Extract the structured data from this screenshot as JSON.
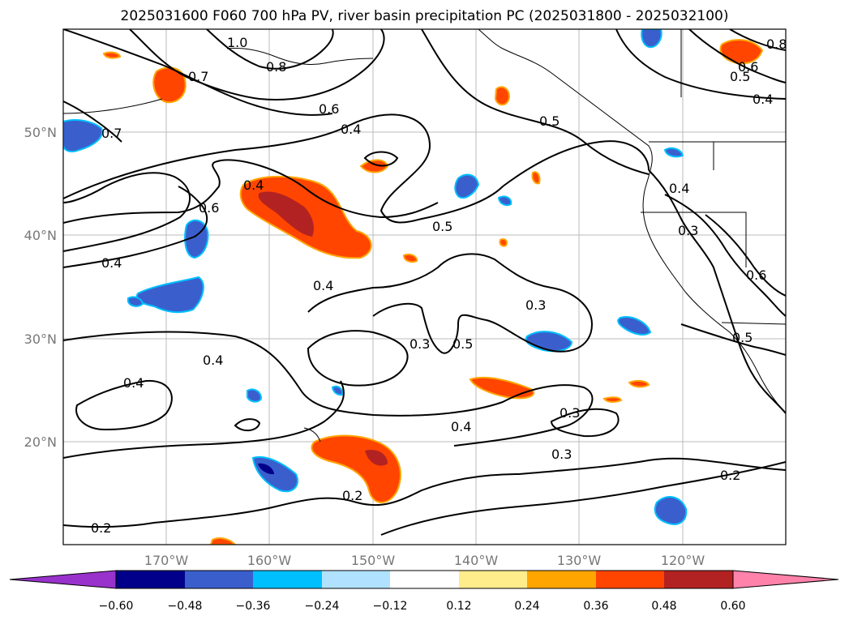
{
  "title": "2025031600 F060 700 hPa PV, river basin precipitation PC (2025031800 - 2025032100)",
  "map": {
    "lon_labels": [
      "170°W",
      "160°W",
      "150°W",
      "140°W",
      "130°W",
      "120°W"
    ],
    "lat_labels": [
      "50°N",
      "40°N",
      "30°N",
      "20°N"
    ],
    "lon_range": [
      -180,
      -110
    ],
    "lat_range": [
      10,
      60
    ],
    "gridlines": true,
    "contour_color": "#000000",
    "pv_contour_labels": [
      "1.0",
      "0.8",
      "0.7",
      "0.7",
      "0.6",
      "0.4",
      "0.5",
      "0.4",
      "0.6",
      "0.4",
      "0.4",
      "0.5",
      "0.3",
      "0.3",
      "0.5",
      "0.4",
      "0.4",
      "0.3",
      "0.4",
      "0.3",
      "0.2",
      "0.2",
      "0.2",
      "0.4",
      "0.3",
      "0.6",
      "0.5",
      "0.5",
      "0.6",
      "0.4",
      "0.8"
    ]
  },
  "colorbar": {
    "ticks": [
      "−0.60",
      "−0.48",
      "−0.36",
      "−0.24",
      "−0.12",
      "0.12",
      "0.24",
      "0.36",
      "0.48",
      "0.60"
    ],
    "colors": [
      "#9932cc",
      "#00008b",
      "#3a5fcd",
      "#00bfff",
      "#b0e2ff",
      "#ffffff",
      "#ffec8b",
      "#ffa500",
      "#ff4500",
      "#b22222",
      "#ff82ab"
    ]
  }
}
